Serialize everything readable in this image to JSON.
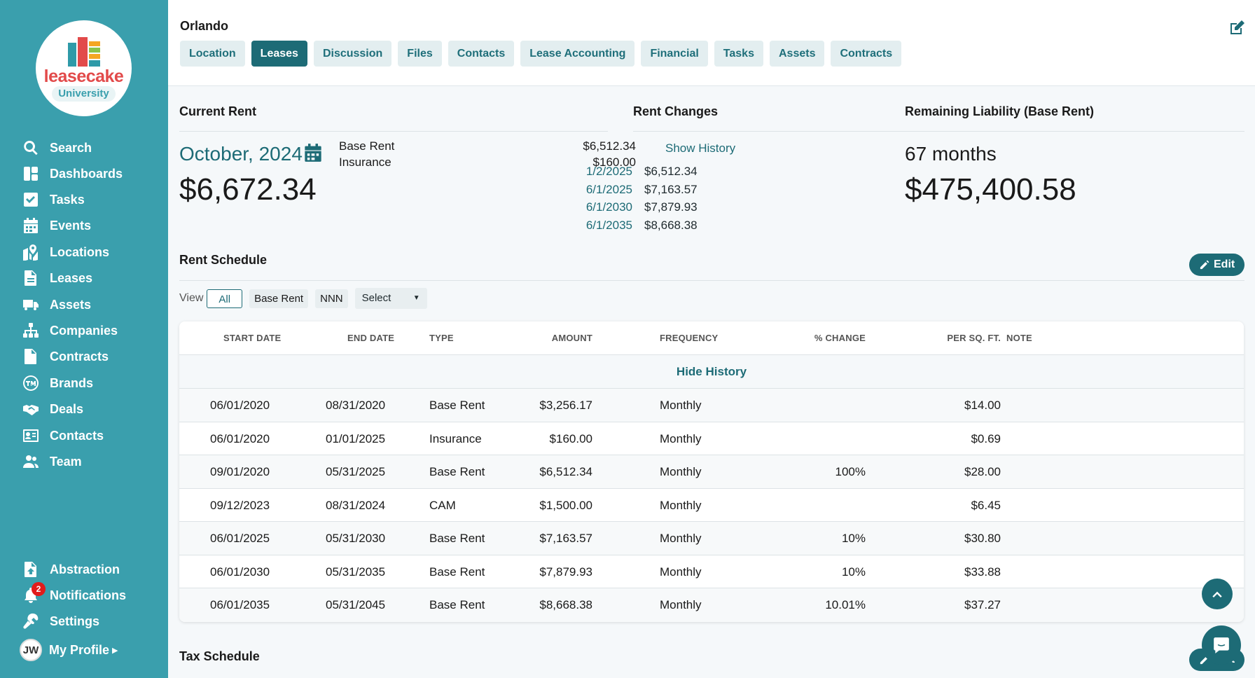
{
  "brand": {
    "name": "leasecake",
    "badge": "University"
  },
  "sidebar": {
    "items": [
      {
        "label": "Search",
        "icon": "search-icon"
      },
      {
        "label": "Dashboards",
        "icon": "dashboard-icon"
      },
      {
        "label": "Tasks",
        "icon": "check-square-icon"
      },
      {
        "label": "Events",
        "icon": "calendar-icon"
      },
      {
        "label": "Locations",
        "icon": "map-icon"
      },
      {
        "label": "Leases",
        "icon": "document-icon"
      },
      {
        "label": "Assets",
        "icon": "truck-icon"
      },
      {
        "label": "Companies",
        "icon": "org-chart-icon"
      },
      {
        "label": "Contracts",
        "icon": "contract-icon"
      },
      {
        "label": "Brands",
        "icon": "trademark-icon"
      },
      {
        "label": "Deals",
        "icon": "handshake-icon"
      },
      {
        "label": "Contacts",
        "icon": "id-card-icon"
      },
      {
        "label": "Team",
        "icon": "users-icon"
      }
    ],
    "bottom": [
      {
        "label": "Abstraction",
        "icon": "file-upload-icon"
      },
      {
        "label": "Notifications",
        "icon": "bell-icon",
        "badge": "2"
      },
      {
        "label": "Settings",
        "icon": "wrench-icon"
      }
    ],
    "profile": {
      "initials": "JW",
      "label": "My Profile"
    }
  },
  "header": {
    "title": "Orlando",
    "tabs": [
      "Location",
      "Leases",
      "Discussion",
      "Files",
      "Contacts",
      "Lease Accounting",
      "Financial",
      "Tasks",
      "Assets",
      "Contracts"
    ],
    "active_tab": "Leases"
  },
  "current_rent": {
    "heading": "Current Rent",
    "month": "October, 2024",
    "total": "$6,672.34",
    "lines": [
      {
        "label": "Base Rent",
        "value": "$6,512.34"
      },
      {
        "label": "Insurance",
        "value": "$160.00"
      }
    ]
  },
  "rent_changes": {
    "heading": "Rent Changes",
    "show_history": "Show History",
    "rows": [
      {
        "date": "1/2/2025",
        "amount": "$6,512.34"
      },
      {
        "date": "6/1/2025",
        "amount": "$7,163.57"
      },
      {
        "date": "6/1/2030",
        "amount": "$7,879.93"
      },
      {
        "date": "6/1/2035",
        "amount": "$8,668.38"
      }
    ]
  },
  "liability": {
    "heading": "Remaining Liability (Base Rent)",
    "months": "67 months",
    "amount": "$475,400.58"
  },
  "rent_schedule": {
    "heading": "Rent Schedule",
    "edit_label": "Edit",
    "view_label": "View",
    "filters": [
      "All",
      "Base Rent",
      "NNN"
    ],
    "active_filter": "All",
    "select_value": "Select",
    "columns": [
      "START DATE",
      "END DATE",
      "TYPE",
      "AMOUNT",
      "FREQUENCY",
      "% CHANGE",
      "PER SQ. FT.",
      "NOTE"
    ],
    "hide_history": "Hide History",
    "rows": [
      {
        "start": "06/01/2020",
        "end": "08/31/2020",
        "type": "Base Rent",
        "amount": "$3,256.17",
        "frequency": "Monthly",
        "change": "",
        "per_sqft": "$14.00",
        "note": ""
      },
      {
        "start": "06/01/2020",
        "end": "01/01/2025",
        "type": "Insurance",
        "amount": "$160.00",
        "frequency": "Monthly",
        "change": "",
        "per_sqft": "$0.69",
        "note": ""
      },
      {
        "start": "09/01/2020",
        "end": "05/31/2025",
        "type": "Base Rent",
        "amount": "$6,512.34",
        "frequency": "Monthly",
        "change": "100%",
        "per_sqft": "$28.00",
        "note": ""
      },
      {
        "start": "09/12/2023",
        "end": "08/31/2024",
        "type": "CAM",
        "amount": "$1,500.00",
        "frequency": "Monthly",
        "change": "",
        "per_sqft": "$6.45",
        "note": ""
      },
      {
        "start": "06/01/2025",
        "end": "05/31/2030",
        "type": "Base Rent",
        "amount": "$7,163.57",
        "frequency": "Monthly",
        "change": "10%",
        "per_sqft": "$30.80",
        "note": ""
      },
      {
        "start": "06/01/2030",
        "end": "05/31/2035",
        "type": "Base Rent",
        "amount": "$7,879.93",
        "frequency": "Monthly",
        "change": "10%",
        "per_sqft": "$33.88",
        "note": ""
      },
      {
        "start": "06/01/2035",
        "end": "05/31/2045",
        "type": "Base Rent",
        "amount": "$8,668.38",
        "frequency": "Monthly",
        "change": "10.01%",
        "per_sqft": "$37.27",
        "note": ""
      }
    ]
  },
  "tax_schedule": {
    "heading": "Tax Schedule",
    "edit_label": "Edit"
  },
  "colors": {
    "sidebar": "#3a9fad",
    "accent": "#1d6b76",
    "logo_red": "#e24a4a"
  }
}
